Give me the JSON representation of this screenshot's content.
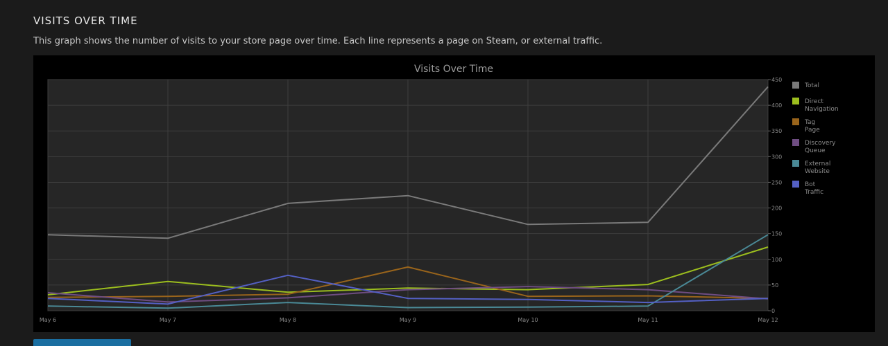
{
  "section": {
    "title": "VISITS OVER TIME",
    "description": "This graph shows the number of visits to your store page over time. Each line represents a page on Steam, or external traffic."
  },
  "chart_data": {
    "type": "line",
    "title": "Visits Over Time",
    "xlabel": "",
    "ylabel": "",
    "categories": [
      "May 6",
      "May 7",
      "May 8",
      "May 9",
      "May 10",
      "May 11",
      "May 12"
    ],
    "ylim": [
      0,
      450
    ],
    "yticks": [
      0,
      50,
      100,
      150,
      200,
      250,
      300,
      350,
      400,
      450
    ],
    "y_axis_side": "right",
    "grid": true,
    "legend_position": "right",
    "series": [
      {
        "name": "Total",
        "color": "#7a7a7a",
        "values": [
          148,
          141,
          209,
          224,
          168,
          172,
          436
        ]
      },
      {
        "name": "Direct Navigation",
        "color": "#9cbe1e",
        "values": [
          31,
          57,
          36,
          44,
          41,
          51,
          124
        ]
      },
      {
        "name": "Tag Page",
        "color": "#99641b",
        "values": [
          26,
          28,
          32,
          85,
          28,
          29,
          24
        ]
      },
      {
        "name": "Discovery Queue",
        "color": "#6f4d82",
        "values": [
          35,
          17,
          25,
          41,
          47,
          41,
          23
        ]
      },
      {
        "name": "External Website",
        "color": "#4a8996",
        "values": [
          9,
          5,
          16,
          6,
          7,
          9,
          148
        ]
      },
      {
        "name": "Bot Traffic",
        "color": "#5460c4",
        "values": [
          24,
          13,
          69,
          24,
          22,
          16,
          24
        ]
      }
    ]
  },
  "colors": {
    "page_background": "#1b1b1b",
    "panel_background": "#000000",
    "plot_background": "#262626",
    "grid": "#3e3e3e",
    "button": "#1a6ea1"
  }
}
